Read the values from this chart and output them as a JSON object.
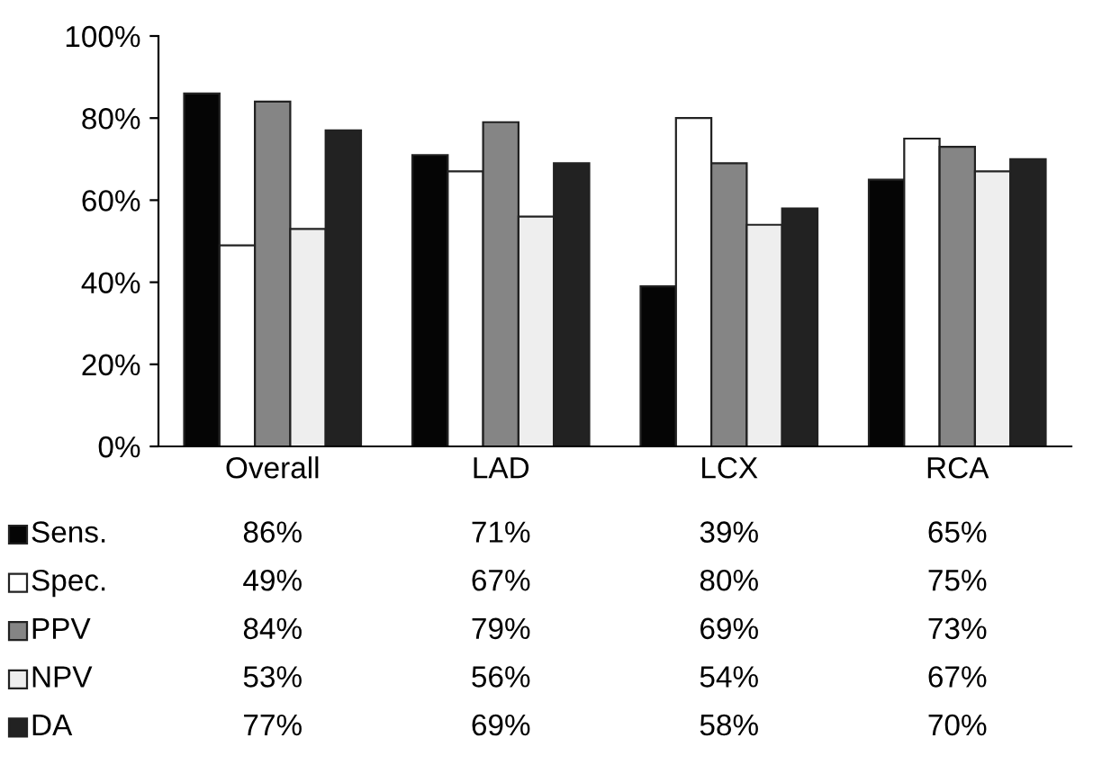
{
  "chart_data": {
    "type": "bar",
    "categories": [
      "Overall",
      "LAD",
      "LCX",
      "RCA"
    ],
    "series": [
      {
        "name": "Sens.",
        "color": "#050505",
        "values": [
          86,
          71,
          39,
          65
        ],
        "value_labels": [
          "86%",
          "71%",
          "39%",
          "65%"
        ]
      },
      {
        "name": "Spec.",
        "color": "#ffffff",
        "values": [
          49,
          67,
          80,
          75
        ],
        "value_labels": [
          "49%",
          "67%",
          "80%",
          "75%"
        ]
      },
      {
        "name": "PPV",
        "color": "#858585",
        "values": [
          84,
          79,
          69,
          73
        ],
        "value_labels": [
          "84%",
          "79%",
          "69%",
          "73%"
        ]
      },
      {
        "name": "NPV",
        "color": "#eeeeee",
        "values": [
          53,
          56,
          54,
          67
        ],
        "value_labels": [
          "53%",
          "56%",
          "54%",
          "67%"
        ]
      },
      {
        "name": "DA",
        "color": "#222222",
        "values": [
          77,
          69,
          58,
          70
        ],
        "value_labels": [
          "77%",
          "69%",
          "58%",
          "70%"
        ]
      }
    ],
    "ylim": [
      0,
      100
    ],
    "yticks": [
      {
        "value": 0,
        "label": "0%"
      },
      {
        "value": 20,
        "label": "20%"
      },
      {
        "value": 40,
        "label": "40%"
      },
      {
        "value": 60,
        "label": "60%"
      },
      {
        "value": 80,
        "label": "80%"
      },
      {
        "value": 100,
        "label": "100%"
      }
    ],
    "grid": false,
    "legend": "bottom"
  }
}
